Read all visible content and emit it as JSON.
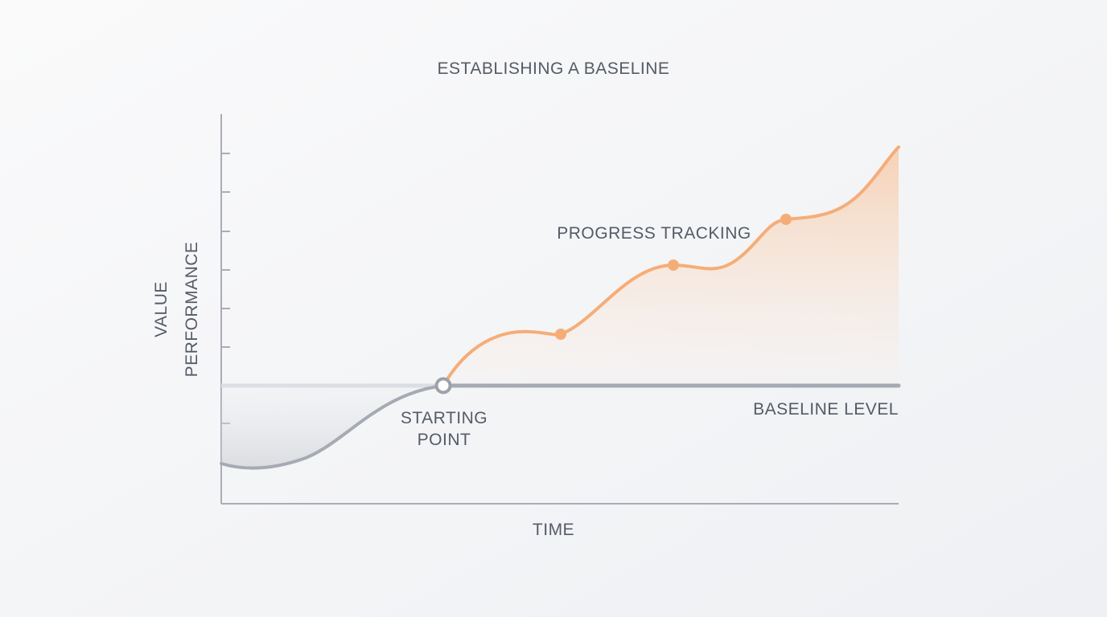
{
  "title": "ESTABLISHING A BASELINE",
  "axes": {
    "y_label": [
      "VALUE",
      "PERFORMANCE"
    ],
    "x_label": "TIME"
  },
  "annotations": {
    "progress": "PROGRESS TRACKING",
    "start": [
      "STARTING",
      "POINT"
    ],
    "baseline": "BASELINE LEVEL"
  }
}
